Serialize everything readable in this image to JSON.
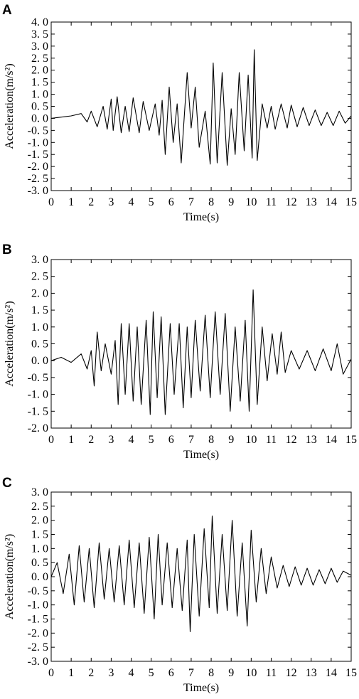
{
  "chart_data": [
    {
      "type": "line",
      "panel": "A",
      "xlabel": "Time(s)",
      "ylabel": "Acceleration(m/s²)",
      "xlim": [
        0,
        15
      ],
      "ylim": [
        -3.0,
        4.0
      ],
      "xticks": [
        "0",
        "1",
        "2",
        "3",
        "4",
        "5",
        "6",
        "7",
        "8",
        "9",
        "10",
        "11",
        "12",
        "13",
        "14",
        "15"
      ],
      "yticks": [
        "4. 0",
        "3. 5",
        "3. 0",
        "2. 5",
        "2. 0",
        "1. 5",
        "1. 0",
        "0. 5",
        "0. 0",
        "-0. 5",
        "-1. 0",
        "-1. 5",
        "-2. 0",
        "-2. 5",
        "-3. 0"
      ],
      "ytick_values": [
        4.0,
        3.5,
        3.0,
        2.5,
        2.0,
        1.5,
        1.0,
        0.5,
        0.0,
        -0.5,
        -1.0,
        -1.5,
        -2.0,
        -2.5,
        -3.0
      ],
      "grid": false,
      "series": [
        {
          "x": [
            0,
            0.5,
            1.0,
            1.5,
            1.8,
            2.0,
            2.3,
            2.6,
            2.8,
            3.0,
            3.1,
            3.3,
            3.5,
            3.7,
            3.9,
            4.1,
            4.4,
            4.6,
            4.9,
            5.2,
            5.4,
            5.55,
            5.7,
            5.9,
            6.1,
            6.3,
            6.5,
            6.8,
            7.0,
            7.2,
            7.4,
            7.7,
            7.95,
            8.1,
            8.3,
            8.55,
            8.8,
            9.0,
            9.2,
            9.4,
            9.65,
            9.85,
            10.05,
            10.15,
            10.3,
            10.55,
            10.8,
            11.0,
            11.2,
            11.5,
            11.8,
            12.0,
            12.3,
            12.6,
            12.9,
            13.2,
            13.5,
            13.8,
            14.1,
            14.4,
            14.7,
            15.0
          ],
          "y": [
            0.0,
            0.05,
            0.1,
            0.2,
            -0.15,
            0.3,
            -0.35,
            0.5,
            -0.45,
            0.8,
            -0.5,
            0.9,
            -0.6,
            0.5,
            -0.55,
            0.85,
            -0.6,
            0.7,
            -0.5,
            0.6,
            -0.7,
            0.75,
            -1.5,
            1.3,
            -1.0,
            0.6,
            -1.85,
            1.9,
            -0.4,
            1.3,
            -1.2,
            0.3,
            -1.9,
            2.3,
            -1.85,
            1.9,
            -1.95,
            0.4,
            -1.5,
            1.9,
            -1.35,
            1.8,
            -1.65,
            2.85,
            -1.75,
            0.6,
            -0.4,
            0.5,
            -0.45,
            0.6,
            -0.4,
            0.55,
            -0.35,
            0.45,
            -0.3,
            0.35,
            -0.3,
            0.25,
            -0.3,
            0.3,
            -0.2,
            0.1
          ]
        }
      ]
    },
    {
      "type": "line",
      "panel": "B",
      "xlabel": "Time(s)",
      "ylabel": "Acceleration(m/s²)",
      "xlim": [
        0,
        15
      ],
      "ylim": [
        -2.0,
        3.0
      ],
      "xticks": [
        "0",
        "1",
        "2",
        "3",
        "4",
        "5",
        "6",
        "7",
        "8",
        "9",
        "10",
        "11",
        "12",
        "13",
        "14",
        "15"
      ],
      "yticks": [
        "3. 0",
        "2. 5",
        "2. 0",
        "1. 5",
        "1. 0",
        "0. 5",
        "0. 0",
        "-0. 5",
        "-1. 0",
        "-1. 5",
        "-2. 0"
      ],
      "ytick_values": [
        3.0,
        2.5,
        2.0,
        1.5,
        1.0,
        0.5,
        0.0,
        -0.5,
        -1.0,
        -1.5,
        -2.0
      ],
      "grid": false,
      "series": [
        {
          "x": [
            0,
            0.5,
            1.0,
            1.5,
            1.8,
            2.0,
            2.15,
            2.3,
            2.5,
            2.7,
            3.0,
            3.2,
            3.35,
            3.5,
            3.7,
            3.9,
            4.1,
            4.3,
            4.5,
            4.75,
            4.95,
            5.1,
            5.3,
            5.5,
            5.7,
            5.95,
            6.15,
            6.4,
            6.6,
            6.8,
            7.0,
            7.2,
            7.45,
            7.7,
            7.95,
            8.2,
            8.45,
            8.7,
            8.95,
            9.2,
            9.45,
            9.7,
            9.9,
            10.1,
            10.3,
            10.55,
            10.8,
            11.05,
            11.3,
            11.5,
            11.7,
            12.0,
            12.4,
            12.8,
            13.2,
            13.6,
            14.0,
            14.3,
            14.6,
            15.0
          ],
          "y": [
            0.0,
            0.1,
            -0.05,
            0.2,
            -0.25,
            0.3,
            -0.75,
            0.85,
            -0.3,
            0.5,
            -0.4,
            0.6,
            -1.3,
            1.1,
            -1.0,
            1.1,
            -1.2,
            1.0,
            -1.3,
            1.2,
            -1.6,
            1.45,
            -1.1,
            1.3,
            -1.6,
            1.1,
            -1.0,
            1.1,
            -1.4,
            1.0,
            -1.1,
            1.2,
            -0.9,
            1.35,
            -1.1,
            1.45,
            -1.0,
            1.4,
            -1.5,
            1.0,
            -1.2,
            1.2,
            -1.5,
            2.1,
            -1.3,
            1.0,
            -0.6,
            0.8,
            -0.4,
            0.85,
            -0.35,
            0.3,
            -0.25,
            0.3,
            -0.3,
            0.35,
            -0.3,
            0.5,
            -0.4,
            0.05
          ]
        }
      ]
    },
    {
      "type": "line",
      "panel": "C",
      "xlabel": "Time(s)",
      "ylabel": "Acceleration(m/s²)",
      "xlim": [
        0,
        15
      ],
      "ylim": [
        -3.0,
        3.0
      ],
      "xticks": [
        "0",
        "1",
        "2",
        "3",
        "4",
        "5",
        "6",
        "7",
        "8",
        "9",
        "10",
        "11",
        "12",
        "13",
        "14",
        "15"
      ],
      "yticks": [
        "3. 0",
        "2. 5",
        "2. 0",
        "1. 5",
        "1. 0",
        "0. 5",
        "0. 0",
        "-0. 5",
        "-1. 0",
        "-1. 5",
        "-2. 0",
        "-2. 5",
        "-3. 0"
      ],
      "ytick_values": [
        3.0,
        2.5,
        2.0,
        1.5,
        1.0,
        0.5,
        0.0,
        -0.5,
        -1.0,
        -1.5,
        -2.0,
        -2.5,
        -3.0
      ],
      "grid": false,
      "series": [
        {
          "x": [
            0,
            0.3,
            0.6,
            0.9,
            1.15,
            1.4,
            1.65,
            1.9,
            2.15,
            2.4,
            2.65,
            2.9,
            3.15,
            3.4,
            3.65,
            3.9,
            4.15,
            4.4,
            4.65,
            4.9,
            5.15,
            5.35,
            5.55,
            5.8,
            6.05,
            6.3,
            6.55,
            6.8,
            6.95,
            7.15,
            7.4,
            7.65,
            7.9,
            8.05,
            8.3,
            8.55,
            8.8,
            9.05,
            9.3,
            9.55,
            9.8,
            10.0,
            10.25,
            10.5,
            10.75,
            11.0,
            11.3,
            11.6,
            11.9,
            12.2,
            12.5,
            12.8,
            13.1,
            13.4,
            13.7,
            14.0,
            14.3,
            14.6,
            15.0
          ],
          "y": [
            0.0,
            0.5,
            -0.6,
            0.8,
            -1.0,
            1.1,
            -0.9,
            1.0,
            -1.1,
            1.2,
            -0.8,
            1.0,
            -0.9,
            1.1,
            -1.0,
            1.3,
            -1.1,
            1.2,
            -1.3,
            1.4,
            -1.5,
            1.5,
            -1.0,
            1.2,
            -1.1,
            1.0,
            -1.2,
            1.3,
            -1.95,
            1.5,
            -1.4,
            1.7,
            -1.1,
            2.15,
            -1.3,
            1.5,
            -1.2,
            2.0,
            -1.4,
            1.2,
            -1.75,
            1.65,
            -0.9,
            1.0,
            -0.6,
            0.7,
            -0.4,
            0.4,
            -0.35,
            0.35,
            -0.3,
            0.3,
            -0.3,
            0.25,
            -0.25,
            0.3,
            -0.2,
            0.2,
            0.05
          ]
        }
      ]
    }
  ]
}
